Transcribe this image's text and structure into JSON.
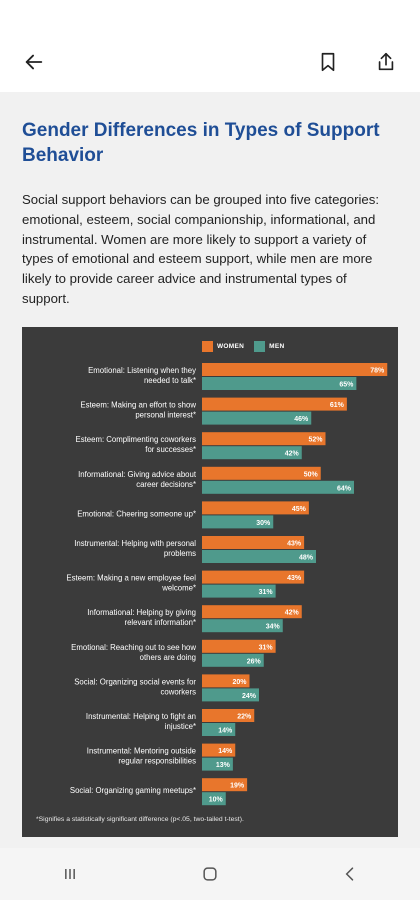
{
  "article": {
    "title": "Gender Differences in Types of Support Behavior",
    "intro": "Social support behaviors can be grouped into five categories: emotional, esteem, social companionship, informational, and instrumental. Women are more likely to support a variety of types of emotional and esteem support, while men are more likely to provide career advice and instrumental types of support."
  },
  "chart_data": {
    "type": "bar",
    "orientation": "horizontal",
    "legend": [
      "WOMEN",
      "MEN"
    ],
    "legend_placement": "top",
    "categories": [
      [
        "Emotional: Listening when they",
        "needed to talk*"
      ],
      [
        "Esteem: Making an effort to show",
        "personal interest*"
      ],
      [
        "Esteem: Complimenting coworkers",
        "for successes*"
      ],
      [
        "Informational: Giving advice about",
        "career decisions*"
      ],
      [
        "Emotional: Cheering someone up*"
      ],
      [
        "Instrumental: Helping with personal",
        "problems"
      ],
      [
        "Esteem: Making a new employee feel",
        "welcome*"
      ],
      [
        "Informational: Helping by giving",
        "relevant information*"
      ],
      [
        "Emotional: Reaching out to see how",
        "others are doing"
      ],
      [
        "Social: Organizing social events for",
        "coworkers"
      ],
      [
        "Instrumental: Helping to fight an",
        "injustice*"
      ],
      [
        "Instrumental: Mentoring outside",
        "regular responsibilities"
      ],
      [
        "Social: Organizing gaming meetups*"
      ]
    ],
    "series": [
      {
        "name": "WOMEN",
        "color": "#e8762c",
        "values": [
          78,
          61,
          52,
          50,
          45,
          43,
          43,
          42,
          31,
          20,
          22,
          14,
          19
        ]
      },
      {
        "name": "MEN",
        "color": "#4f9a8c",
        "values": [
          65,
          46,
          42,
          64,
          30,
          48,
          31,
          34,
          26,
          24,
          14,
          13,
          10
        ]
      }
    ],
    "value_suffix": "%",
    "xlim": [
      0,
      80
    ],
    "grid": false,
    "footnote": "*Signifies a statistically significant difference (p<.05, two-tailed t-test)."
  },
  "nav": {
    "back_icon": "arrow-left-icon",
    "bookmark_icon": "bookmark-icon",
    "share_icon": "share-icon"
  },
  "system_nav": {
    "recents_icon": "recents-icon",
    "home_icon": "home-icon",
    "back_icon": "chevron-left-icon"
  }
}
